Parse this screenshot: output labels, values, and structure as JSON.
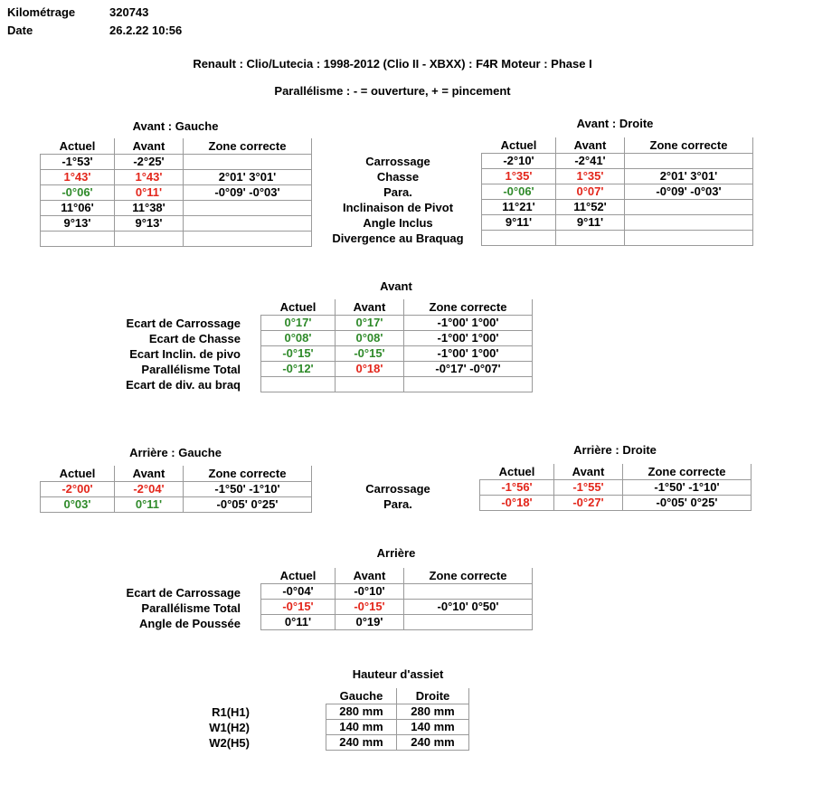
{
  "header": {
    "km_label": "Kilométrage",
    "km_value": "320743",
    "date_label": "Date",
    "date_value": "26.2.22 10:56"
  },
  "vehicle": "Renault : Clio/Lutecia : 1998-2012 (Clio II - XBXX) : F4R Moteur : Phase I",
  "legend": "Parallélisme :  - = ouverture, + = pincement",
  "colors": {
    "out_of_range": "#e3261b",
    "in_range": "#2f8a2a"
  },
  "cols": {
    "actuel": "Actuel",
    "avant": "Avant",
    "zone": "Zone correcte",
    "gauche": "Gauche",
    "droite": "Droite"
  },
  "front": {
    "left_title": "Avant : Gauche",
    "right_title": "Avant : Droite",
    "labels": [
      "Carrossage",
      "Chasse",
      "Para.",
      "Inclinaison de Pivot",
      "Angle Inclus",
      "Divergence au Braquag"
    ],
    "left": [
      [
        "-1°53'",
        "-2°25'",
        ""
      ],
      [
        "1°43'",
        "1°43'",
        "2°01' 3°01'"
      ],
      [
        "-0°06'",
        "0°11'",
        "-0°09' -0°03'"
      ],
      [
        "11°06'",
        "11°38'",
        ""
      ],
      [
        "9°13'",
        "9°13'",
        ""
      ],
      [
        "",
        "",
        ""
      ]
    ],
    "right": [
      [
        "-2°10'",
        "-2°41'",
        ""
      ],
      [
        "1°35'",
        "1°35'",
        "2°01' 3°01'"
      ],
      [
        "-0°06'",
        "0°07'",
        "-0°09' -0°03'"
      ],
      [
        "11°21'",
        "11°52'",
        ""
      ],
      [
        "9°11'",
        "9°11'",
        ""
      ],
      [
        "",
        "",
        ""
      ]
    ]
  },
  "front_axle": {
    "title": "Avant",
    "labels": [
      "Ecart de Carrossage",
      "Ecart de Chasse",
      "Ecart Inclin. de pivo",
      "Parallélisme Total",
      "Ecart de div. au braq"
    ],
    "rows": [
      [
        "0°17'",
        "0°17'",
        "-1°00' 1°00'"
      ],
      [
        "0°08'",
        "0°08'",
        "-1°00' 1°00'"
      ],
      [
        "-0°15'",
        "-0°15'",
        "-1°00' 1°00'"
      ],
      [
        "-0°12'",
        "0°18'",
        "-0°17' -0°07'"
      ],
      [
        "",
        "",
        ""
      ]
    ]
  },
  "rear": {
    "left_title": "Arrière : Gauche",
    "right_title": "Arrière : Droite",
    "labels": [
      "Carrossage",
      "Para."
    ],
    "left": [
      [
        "-2°00'",
        "-2°04'",
        "-1°50' -1°10'"
      ],
      [
        "0°03'",
        "0°11'",
        "-0°05' 0°25'"
      ]
    ],
    "right": [
      [
        "-1°56'",
        "-1°55'",
        "-1°50' -1°10'"
      ],
      [
        "-0°18'",
        "-0°27'",
        "-0°05' 0°25'"
      ]
    ]
  },
  "rear_axle": {
    "title": "Arrière",
    "labels": [
      "Ecart de Carrossage",
      "Parallélisme Total",
      "Angle de Poussée"
    ],
    "rows": [
      [
        "-0°04'",
        "-0°10'",
        ""
      ],
      [
        "-0°15'",
        "-0°15'",
        "-0°10' 0°50'"
      ],
      [
        "0°11'",
        "0°19'",
        ""
      ]
    ]
  },
  "height": {
    "title": "Hauteur d'assiet",
    "labels": [
      "R1(H1)",
      "W1(H2)",
      "W2(H5)"
    ],
    "rows": [
      [
        "280 mm",
        "280 mm"
      ],
      [
        "140 mm",
        "140 mm"
      ],
      [
        "240 mm",
        "240 mm"
      ]
    ]
  }
}
